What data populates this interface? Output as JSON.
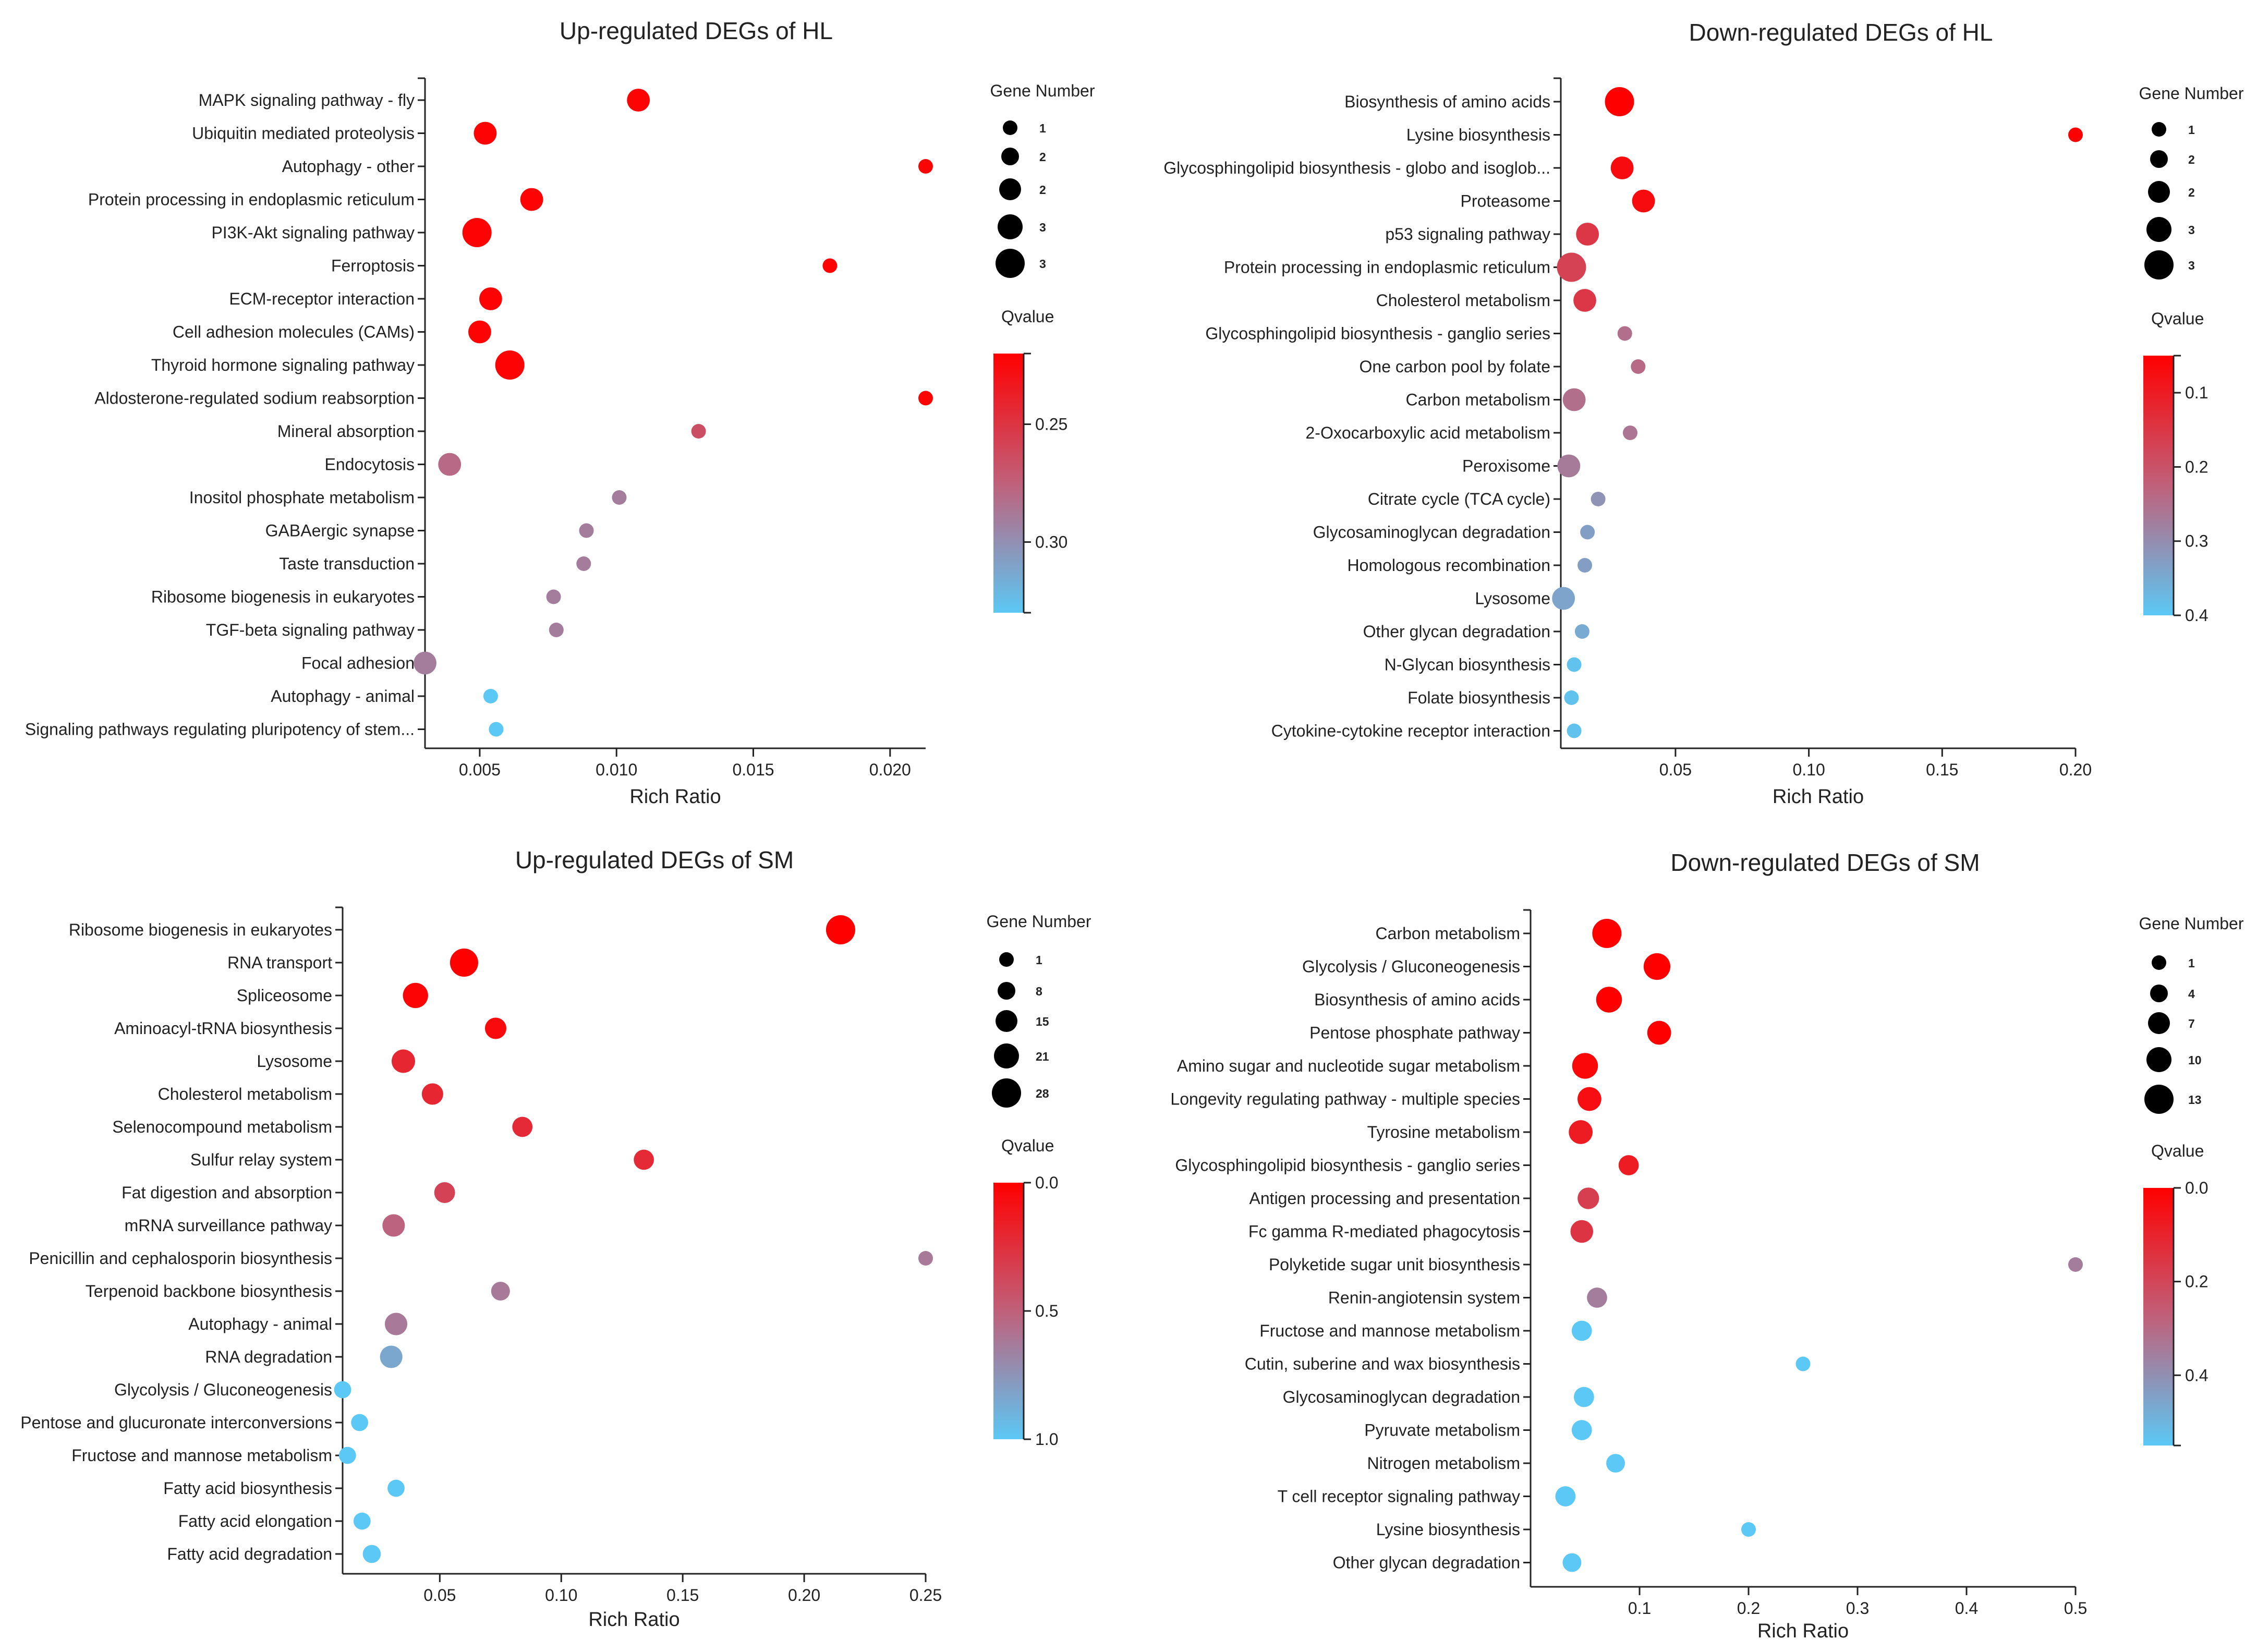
{
  "chart_data": [
    {
      "type": "scatter",
      "title": "Up-regulated DEGs of HL",
      "xlabel": "Rich Ratio",
      "xlim": [
        0.003,
        0.0213
      ],
      "xticks": [
        0.005,
        0.01,
        0.015,
        0.02
      ],
      "xtick_labels": [
        "0.005",
        "0.010",
        "0.015",
        "0.020"
      ],
      "size_legend_title": "Gene Number",
      "size_legend": [
        1,
        2,
        2,
        3,
        3
      ],
      "color_legend_title": "Qvalue",
      "qlim": [
        0.22,
        0.33
      ],
      "color_ticks": [
        0.25,
        0.3
      ],
      "color_tick_labels": [
        "0.25",
        "0.30"
      ],
      "points": [
        {
          "term": "MAPK signaling pathway - fly",
          "rich_ratio": 0.0108,
          "genes": 2,
          "q": 0.222
        },
        {
          "term": "Ubiquitin mediated proteolysis",
          "rich_ratio": 0.0052,
          "genes": 2,
          "q": 0.222
        },
        {
          "term": "Autophagy - other",
          "rich_ratio": 0.0213,
          "genes": 1,
          "q": 0.222
        },
        {
          "term": "Protein processing in endoplasmic reticulum",
          "rich_ratio": 0.0069,
          "genes": 2,
          "q": 0.222
        },
        {
          "term": "PI3K-Akt signaling pathway",
          "rich_ratio": 0.0049,
          "genes": 3,
          "q": 0.222
        },
        {
          "term": "Ferroptosis",
          "rich_ratio": 0.0178,
          "genes": 1,
          "q": 0.222
        },
        {
          "term": "ECM-receptor interaction",
          "rich_ratio": 0.0054,
          "genes": 2,
          "q": 0.222
        },
        {
          "term": "Cell adhesion molecules (CAMs)",
          "rich_ratio": 0.005,
          "genes": 2,
          "q": 0.222
        },
        {
          "term": "Thyroid hormone signaling pathway",
          "rich_ratio": 0.0061,
          "genes": 3,
          "q": 0.222
        },
        {
          "term": "Aldosterone-regulated sodium reabsorption",
          "rich_ratio": 0.0213,
          "genes": 1,
          "q": 0.222
        },
        {
          "term": "Mineral absorption",
          "rich_ratio": 0.013,
          "genes": 1,
          "q": 0.265
        },
        {
          "term": "Endocytosis",
          "rich_ratio": 0.0039,
          "genes": 2,
          "q": 0.28
        },
        {
          "term": "Inositol phosphate metabolism",
          "rich_ratio": 0.0101,
          "genes": 1,
          "q": 0.29
        },
        {
          "term": "GABAergic synapse",
          "rich_ratio": 0.0089,
          "genes": 1,
          "q": 0.29
        },
        {
          "term": "Taste transduction",
          "rich_ratio": 0.0088,
          "genes": 1,
          "q": 0.29
        },
        {
          "term": "Ribosome biogenesis in eukaryotes",
          "rich_ratio": 0.0077,
          "genes": 1,
          "q": 0.29
        },
        {
          "term": "TGF-beta signaling pathway",
          "rich_ratio": 0.0078,
          "genes": 1,
          "q": 0.29
        },
        {
          "term": "Focal adhesion",
          "rich_ratio": 0.003,
          "genes": 2,
          "q": 0.29
        },
        {
          "term": "Autophagy - animal",
          "rich_ratio": 0.0054,
          "genes": 1,
          "q": 0.33
        },
        {
          "term": "Signaling pathways regulating pluripotency of stem...",
          "rich_ratio": 0.0056,
          "genes": 1,
          "q": 0.33
        }
      ]
    },
    {
      "type": "scatter",
      "title": "Down-regulated DEGs of HL",
      "xlabel": "Rich Ratio",
      "xlim": [
        0.007,
        0.2
      ],
      "xticks": [
        0.05,
        0.1,
        0.15,
        0.2
      ],
      "xtick_labels": [
        "0.05",
        "0.10",
        "0.15",
        "0.20"
      ],
      "size_legend_title": "Gene Number",
      "size_legend": [
        1,
        2,
        2,
        3,
        3
      ],
      "color_legend_title": "Qvalue",
      "qlim": [
        0.05,
        0.4
      ],
      "color_ticks": [
        0.1,
        0.2,
        0.3,
        0.4
      ],
      "color_tick_labels": [
        "0.1",
        "0.2",
        "0.3",
        "0.4"
      ],
      "points": [
        {
          "term": "Biosynthesis of amino acids",
          "rich_ratio": 0.029,
          "genes": 3,
          "q": 0.05
        },
        {
          "term": "Lysine biosynthesis",
          "rich_ratio": 0.2,
          "genes": 1,
          "q": 0.05
        },
        {
          "term": "Glycosphingolipid biosynthesis - globo and isoglob...",
          "rich_ratio": 0.03,
          "genes": 2,
          "q": 0.07
        },
        {
          "term": "Proteasome",
          "rich_ratio": 0.038,
          "genes": 2,
          "q": 0.07
        },
        {
          "term": "p53 signaling pathway",
          "rich_ratio": 0.017,
          "genes": 2,
          "q": 0.15
        },
        {
          "term": "Protein processing in endoplasmic reticulum",
          "rich_ratio": 0.011,
          "genes": 3,
          "q": 0.17
        },
        {
          "term": "Cholesterol metabolism",
          "rich_ratio": 0.016,
          "genes": 2,
          "q": 0.15
        },
        {
          "term": "Glycosphingolipid biosynthesis - ganglio series",
          "rich_ratio": 0.031,
          "genes": 1,
          "q": 0.25
        },
        {
          "term": "One carbon pool by folate",
          "rich_ratio": 0.036,
          "genes": 1,
          "q": 0.24
        },
        {
          "term": "Carbon metabolism",
          "rich_ratio": 0.012,
          "genes": 2,
          "q": 0.25
        },
        {
          "term": "2-Oxocarboxylic acid metabolism",
          "rich_ratio": 0.033,
          "genes": 1,
          "q": 0.26
        },
        {
          "term": "Peroxisome",
          "rich_ratio": 0.01,
          "genes": 2,
          "q": 0.27
        },
        {
          "term": "Citrate cycle (TCA cycle)",
          "rich_ratio": 0.021,
          "genes": 1,
          "q": 0.31
        },
        {
          "term": "Glycosaminoglycan degradation",
          "rich_ratio": 0.017,
          "genes": 1,
          "q": 0.33
        },
        {
          "term": "Homologous recombination",
          "rich_ratio": 0.016,
          "genes": 1,
          "q": 0.33
        },
        {
          "term": "Lysosome",
          "rich_ratio": 0.008,
          "genes": 2,
          "q": 0.34
        },
        {
          "term": "Other glycan degradation",
          "rich_ratio": 0.015,
          "genes": 1,
          "q": 0.35
        },
        {
          "term": "N-Glycan biosynthesis",
          "rich_ratio": 0.012,
          "genes": 1,
          "q": 0.39
        },
        {
          "term": "Folate biosynthesis",
          "rich_ratio": 0.011,
          "genes": 1,
          "q": 0.39
        },
        {
          "term": "Cytokine-cytokine receptor interaction",
          "rich_ratio": 0.012,
          "genes": 1,
          "q": 0.39
        }
      ]
    },
    {
      "type": "scatter",
      "title": "Up-regulated DEGs of SM",
      "xlabel": "Rich Ratio",
      "xlim": [
        0.01,
        0.25
      ],
      "xticks": [
        0.05,
        0.1,
        0.15,
        0.2,
        0.25
      ],
      "xtick_labels": [
        "0.05",
        "0.10",
        "0.15",
        "0.20",
        "0.25"
      ],
      "size_legend_title": "Gene Number",
      "size_legend": [
        1,
        8,
        15,
        21,
        28
      ],
      "color_legend_title": "Qvalue",
      "qlim": [
        0,
        1
      ],
      "color_ticks": [
        0,
        0.5,
        1
      ],
      "color_tick_labels": [
        "0.0",
        "0.5",
        "1.0"
      ],
      "points": [
        {
          "term": "Ribosome biogenesis in eukaryotes",
          "rich_ratio": 0.215,
          "genes": 28,
          "q": 0.0
        },
        {
          "term": "RNA transport",
          "rich_ratio": 0.06,
          "genes": 25,
          "q": 0.0
        },
        {
          "term": "Spliceosome",
          "rich_ratio": 0.04,
          "genes": 17,
          "q": 0.02
        },
        {
          "term": "Aminoacyl-tRNA biosynthesis",
          "rich_ratio": 0.073,
          "genes": 9,
          "q": 0.05
        },
        {
          "term": "Lysosome",
          "rich_ratio": 0.035,
          "genes": 13,
          "q": 0.2
        },
        {
          "term": "Cholesterol metabolism",
          "rich_ratio": 0.047,
          "genes": 9,
          "q": 0.2
        },
        {
          "term": "Selenocompound metabolism",
          "rich_ratio": 0.084,
          "genes": 7,
          "q": 0.22
        },
        {
          "term": "Sulfur relay system",
          "rich_ratio": 0.134,
          "genes": 7,
          "q": 0.22
        },
        {
          "term": "Fat digestion and absorption",
          "rich_ratio": 0.052,
          "genes": 8,
          "q": 0.35
        },
        {
          "term": "mRNA surveillance pathway",
          "rich_ratio": 0.031,
          "genes": 11,
          "q": 0.52
        },
        {
          "term": "Penicillin and cephalosporin biosynthesis",
          "rich_ratio": 0.25,
          "genes": 1,
          "q": 0.62
        },
        {
          "term": "Terpenoid backbone biosynthesis",
          "rich_ratio": 0.075,
          "genes": 5,
          "q": 0.62
        },
        {
          "term": "Autophagy - animal",
          "rich_ratio": 0.032,
          "genes": 11,
          "q": 0.62
        },
        {
          "term": "RNA degradation",
          "rich_ratio": 0.03,
          "genes": 11,
          "q": 0.84
        },
        {
          "term": "Glycolysis / Gluconeogenesis",
          "rich_ratio": 0.01,
          "genes": 3,
          "q": 1.0
        },
        {
          "term": "Pentose and glucuronate interconversions",
          "rich_ratio": 0.017,
          "genes": 3,
          "q": 1.0
        },
        {
          "term": "Fructose and mannose metabolism",
          "rich_ratio": 0.012,
          "genes": 3,
          "q": 1.0
        },
        {
          "term": "Fatty acid biosynthesis",
          "rich_ratio": 0.032,
          "genes": 3,
          "q": 1.0
        },
        {
          "term": "Fatty acid elongation",
          "rich_ratio": 0.018,
          "genes": 3,
          "q": 1.0
        },
        {
          "term": "Fatty acid degradation",
          "rich_ratio": 0.022,
          "genes": 4,
          "q": 1.0
        }
      ]
    },
    {
      "type": "scatter",
      "title": "Down-regulated DEGs of SM",
      "xlabel": "Rich Ratio",
      "xlim": [
        0.0,
        0.5
      ],
      "xticks": [
        0.1,
        0.2,
        0.3,
        0.4,
        0.5
      ],
      "xtick_labels": [
        "0.1",
        "0.2",
        "0.3",
        "0.4",
        "0.5"
      ],
      "size_legend_title": "Gene Number",
      "size_legend": [
        1,
        4,
        7,
        10,
        13
      ],
      "color_legend_title": "Qvalue",
      "qlim": [
        0,
        0.55
      ],
      "color_ticks": [
        0,
        0.2,
        0.4
      ],
      "color_tick_labels": [
        "0.0",
        "0.2",
        "0.4"
      ],
      "points": [
        {
          "term": "Carbon metabolism",
          "rich_ratio": 0.07,
          "genes": 13,
          "q": 0.0
        },
        {
          "term": "Glycolysis / Gluconeogenesis",
          "rich_ratio": 0.116,
          "genes": 10,
          "q": 0.0
        },
        {
          "term": "Biosynthesis of amino acids",
          "rich_ratio": 0.072,
          "genes": 9,
          "q": 0.0
        },
        {
          "term": "Pentose phosphate pathway",
          "rich_ratio": 0.118,
          "genes": 7,
          "q": 0.0
        },
        {
          "term": "Amino sugar and nucleotide sugar metabolism",
          "rich_ratio": 0.05,
          "genes": 9,
          "q": 0.02
        },
        {
          "term": "Longevity regulating pathway - multiple species",
          "rich_ratio": 0.054,
          "genes": 7,
          "q": 0.04
        },
        {
          "term": "Tyrosine metabolism",
          "rich_ratio": 0.046,
          "genes": 7,
          "q": 0.08
        },
        {
          "term": "Glycosphingolipid biosynthesis - ganglio series",
          "rich_ratio": 0.09,
          "genes": 4,
          "q": 0.08
        },
        {
          "term": "Antigen processing and presentation",
          "rich_ratio": 0.053,
          "genes": 5,
          "q": 0.18
        },
        {
          "term": "Fc gamma R-mediated phagocytosis",
          "rich_ratio": 0.047,
          "genes": 6,
          "q": 0.15
        },
        {
          "term": "Polyketide sugar unit biosynthesis",
          "rich_ratio": 0.5,
          "genes": 1,
          "q": 0.35
        },
        {
          "term": "Renin-angiotensin system",
          "rich_ratio": 0.061,
          "genes": 4,
          "q": 0.35
        },
        {
          "term": "Fructose and mannose metabolism",
          "rich_ratio": 0.047,
          "genes": 4,
          "q": 0.55
        },
        {
          "term": "Cutin, suberine and wax biosynthesis",
          "rich_ratio": 0.25,
          "genes": 1,
          "q": 0.55
        },
        {
          "term": "Glycosaminoglycan degradation",
          "rich_ratio": 0.049,
          "genes": 4,
          "q": 0.55
        },
        {
          "term": "Pyruvate metabolism",
          "rich_ratio": 0.047,
          "genes": 4,
          "q": 0.55
        },
        {
          "term": "Nitrogen metabolism",
          "rich_ratio": 0.078,
          "genes": 3,
          "q": 0.55
        },
        {
          "term": "T cell receptor signaling pathway",
          "rich_ratio": 0.032,
          "genes": 4,
          "q": 0.55
        },
        {
          "term": "Lysine biosynthesis",
          "rich_ratio": 0.2,
          "genes": 1,
          "q": 0.55
        },
        {
          "term": "Other glycan degradation",
          "rich_ratio": 0.038,
          "genes": 3,
          "q": 0.55
        }
      ]
    }
  ],
  "colors": {
    "high": "#ff0000",
    "mid": "#c0607a",
    "low": "#5bc8f5",
    "ink": "#222222"
  }
}
